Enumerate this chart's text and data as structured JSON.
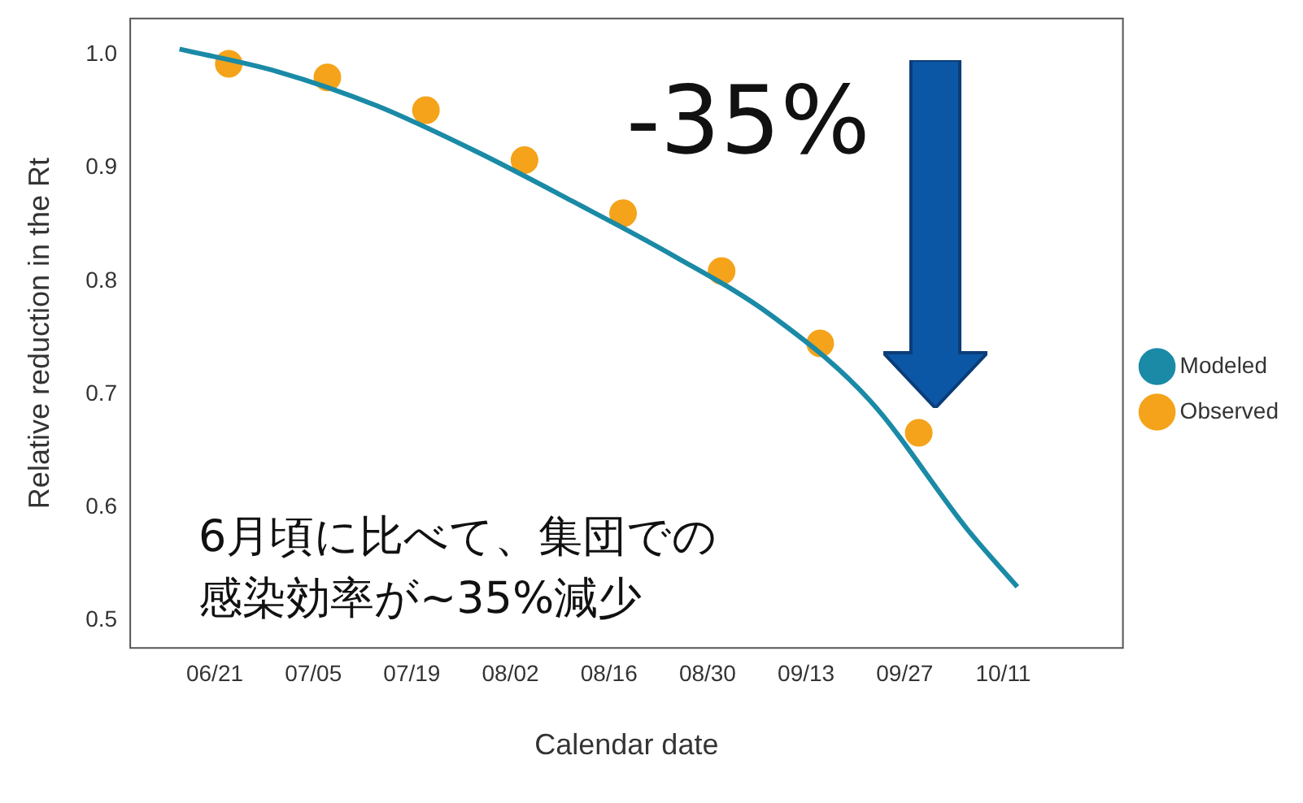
{
  "chart_data": {
    "type": "line",
    "xlabel": "Calendar date",
    "ylabel": "Relative reduction in the Rt",
    "series": [
      {
        "name": "Modeled",
        "type": "line",
        "color": "#1a8aa6",
        "marker": "none",
        "x": [
          "--06-16",
          "--06-30",
          "--07-14",
          "--07-28",
          "--08-11",
          "--08-25",
          "--09-08",
          "--09-22",
          "--10-06",
          "--10-13"
        ],
        "values": [
          1.005,
          0.985,
          0.955,
          0.915,
          0.87,
          0.823,
          0.77,
          0.695,
          0.58,
          0.53
        ]
      },
      {
        "name": "Observed",
        "type": "scatter",
        "color": "#f5a31a",
        "marker": "circle",
        "x": [
          "--06-23",
          "--07-07",
          "--07-21",
          "--08-04",
          "--08-18",
          "--09-01",
          "--09-15",
          "--09-29"
        ],
        "values": [
          0.992,
          0.98,
          0.951,
          0.907,
          0.86,
          0.809,
          0.745,
          0.666
        ]
      }
    ],
    "xlim": [
      "--06-09",
      "--10-28"
    ],
    "xticks": [
      {
        "value": "--06-21",
        "label": "06/21"
      },
      {
        "value": "--07-05",
        "label": "07/05"
      },
      {
        "value": "--07-19",
        "label": "07/19"
      },
      {
        "value": "--08-02",
        "label": "08/02"
      },
      {
        "value": "--08-16",
        "label": "08/16"
      },
      {
        "value": "--08-30",
        "label": "08/30"
      },
      {
        "value": "--09-13",
        "label": "09/13"
      },
      {
        "value": "--09-27",
        "label": "09/27"
      },
      {
        "value": "--10-11",
        "label": "10/11"
      }
    ],
    "ylim": [
      0.476,
      1.032
    ],
    "yticks": [
      0.5,
      0.6,
      0.7,
      0.8,
      0.9,
      {
        "value": 1,
        "label": "1.0"
      }
    ],
    "grid": false,
    "legend": "right",
    "annotations": [
      "-35%",
      "6月頃に比べて、集団での",
      "感染効率が~35%減少"
    ]
  }
}
